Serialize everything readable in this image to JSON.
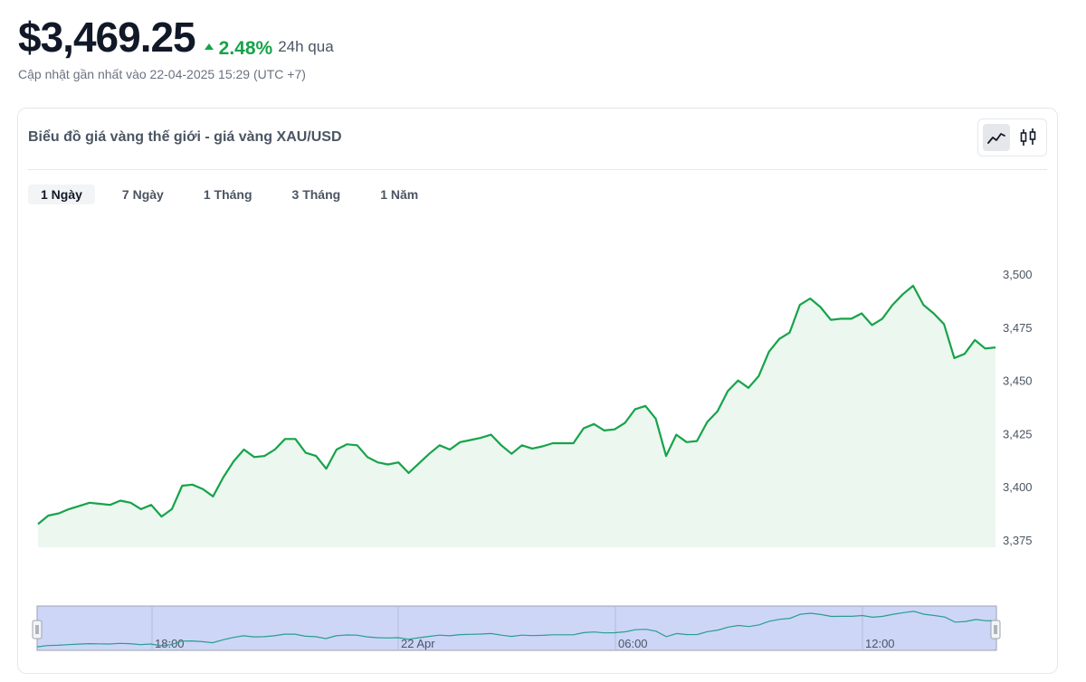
{
  "header": {
    "price": "$3,469.25",
    "change": "2.48%",
    "period": "24h qua",
    "updated": "Cập nhật gần nhất vào 22-04-2025 15:29 (UTC +7)"
  },
  "card": {
    "title": "Biểu đồ giá vàng thế giới - giá vàng XAU/USD",
    "chart_types": [
      {
        "icon": "line-chart-icon",
        "active": true
      },
      {
        "icon": "candlestick-icon",
        "active": false
      }
    ],
    "tabs": [
      {
        "label": "1 Ngày",
        "active": true
      },
      {
        "label": "7 Ngày",
        "active": false
      },
      {
        "label": "1 Tháng",
        "active": false
      },
      {
        "label": "3 Tháng",
        "active": false
      },
      {
        "label": "1 Năm",
        "active": false
      }
    ]
  },
  "colors": {
    "line": "#16a34a",
    "area": "#ecf7ef",
    "navigator_bg": "#cdd6f7",
    "navigator_line": "#2a9d8f"
  },
  "chart_data": {
    "type": "area",
    "ylim": [
      3375,
      3500
    ],
    "yticks": [
      3500,
      3475,
      3450,
      3425,
      3400,
      3375
    ],
    "ytick_labels": [
      "3,500",
      "3,475",
      "3,450",
      "3,425",
      "3,400",
      "3,375"
    ],
    "grid": false,
    "series": [
      {
        "values": [
          3382.5,
          3386.5,
          3387.5,
          3389.5,
          3391,
          3392.5,
          3392,
          3391.5,
          3393.5,
          3392.5,
          3389.5,
          3391.5,
          3386,
          3389.5,
          3400.5,
          3401,
          3399,
          3395.5,
          3404.5,
          3412,
          3417.5,
          3414,
          3414.5,
          3417.5,
          3422.5,
          3422.5,
          3416,
          3414.5,
          3408.5,
          3417.5,
          3420,
          3419.5,
          3414,
          3411.5,
          3410.5,
          3411.5,
          3406.5,
          3411,
          3415.5,
          3419.5,
          3417.5,
          3421,
          3422,
          3423,
          3424.5,
          3419.5,
          3415.5,
          3419.5,
          3418,
          3419,
          3420.5,
          3420.5,
          3420.5,
          3427.5,
          3429.5,
          3426.5,
          3427,
          3430,
          3436.5,
          3438,
          3432,
          3414.5,
          3424.5,
          3421,
          3421.5,
          3430.5,
          3435.5,
          3445,
          3450,
          3446.5,
          3452,
          3463.5,
          3469.5,
          3472.5,
          3485.5,
          3488.5,
          3484.5,
          3478.5,
          3479,
          3479,
          3481.5,
          3476,
          3479,
          3485.5,
          3490.5,
          3494.5,
          3485.5,
          3481.5,
          3476.5,
          3460.5,
          3462.5,
          3469,
          3465,
          3465.5
        ]
      }
    ],
    "navigator": {
      "time_labels": [
        "18:00",
        "22 Apr",
        "06:00",
        "12:00"
      ]
    }
  }
}
